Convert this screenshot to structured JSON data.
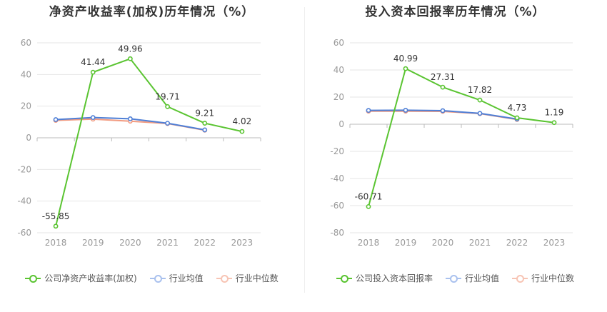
{
  "colors": {
    "company": "#5ac431",
    "industry_avg": "#4f7fd6",
    "industry_median": "#f29b80",
    "grid": "#e6e6e6",
    "label": "#333333",
    "tick": "#999999"
  },
  "chart_data": [
    {
      "type": "line",
      "title": "净资产收益率(加权)历年情况（%）",
      "categories": [
        "2018",
        "2019",
        "2020",
        "2021",
        "2022",
        "2023"
      ],
      "ylim": [
        -60,
        60
      ],
      "yticks": [
        -60,
        -40,
        -20,
        0,
        20,
        40,
        60
      ],
      "grid": true,
      "legend_position": "bottom",
      "series": [
        {
          "name": "公司净资产收益率(加权)",
          "key": "company",
          "values": [
            -55.85,
            41.44,
            49.96,
            19.71,
            9.21,
            4.02
          ],
          "labels": [
            "-55.85",
            "41.44",
            "49.96",
            "19.71",
            "9.21",
            "4.02"
          ]
        },
        {
          "name": "行业均值",
          "key": "industry_avg",
          "values": [
            11.5,
            12.8,
            12.0,
            9.2,
            5.0,
            null
          ]
        },
        {
          "name": "行业中位数",
          "key": "industry_median",
          "values": [
            11.0,
            11.8,
            10.5,
            9.0,
            4.8,
            null
          ]
        }
      ]
    },
    {
      "type": "line",
      "title": "投入资本回报率历年情况（%）",
      "categories": [
        "2018",
        "2019",
        "2020",
        "2021",
        "2022",
        "2023"
      ],
      "ylim": [
        -80,
        60
      ],
      "yticks": [
        -80,
        -60,
        -40,
        -20,
        0,
        20,
        40,
        60
      ],
      "grid": true,
      "legend_position": "bottom",
      "series": [
        {
          "name": "公司投入资本回报率",
          "key": "company",
          "values": [
            -60.71,
            40.99,
            27.31,
            17.82,
            4.73,
            1.19
          ],
          "labels": [
            "-60.71",
            "40.99",
            "27.31",
            "17.82",
            "4.73",
            "1.19"
          ]
        },
        {
          "name": "行业均值",
          "key": "industry_avg",
          "values": [
            10.2,
            10.3,
            10.0,
            8.0,
            3.8,
            null
          ]
        },
        {
          "name": "行业中位数",
          "key": "industry_median",
          "values": [
            9.6,
            9.6,
            9.5,
            7.8,
            3.5,
            null
          ]
        }
      ]
    }
  ]
}
